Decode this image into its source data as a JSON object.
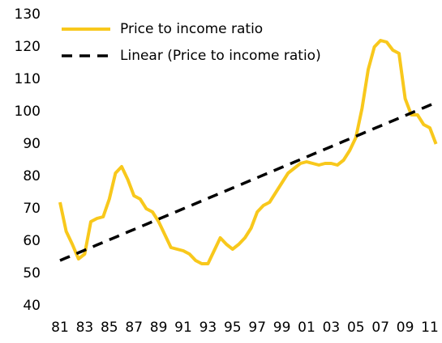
{
  "chart_data": {
    "type": "line",
    "categories": [
      "81",
      null,
      null,
      null,
      "83",
      null,
      null,
      null,
      "85",
      null,
      null,
      null,
      "87",
      null,
      null,
      null,
      "89",
      null,
      null,
      null,
      "91",
      null,
      null,
      null,
      "93",
      null,
      null,
      null,
      "95",
      null,
      null,
      null,
      "97",
      null,
      null,
      null,
      "99",
      null,
      null,
      null,
      "01",
      null,
      null,
      null,
      "03",
      null,
      null,
      null,
      "05",
      null,
      null,
      null,
      "07",
      null,
      null,
      null,
      "09",
      null,
      null,
      null,
      "11",
      null
    ],
    "series": [
      {
        "name": "Price to income ratio",
        "color": "#f8c81c",
        "dashed": false,
        "values": [
          72,
          63,
          59,
          54.5,
          56,
          66,
          67,
          67.5,
          73,
          81,
          83,
          79,
          74,
          73,
          70,
          69,
          66,
          62,
          58,
          57.5,
          57,
          56,
          54,
          53,
          53,
          57,
          61,
          59,
          57.5,
          59,
          61,
          64,
          69,
          71,
          72,
          75,
          78,
          81,
          82.5,
          84,
          84.5,
          84,
          83.5,
          84,
          84,
          83.5,
          85,
          88,
          92,
          101,
          113,
          120,
          122,
          121.5,
          119,
          118,
          104,
          99,
          99,
          96,
          95,
          90
        ]
      },
      {
        "name": "Linear (Price to income ratio)",
        "color": "#000000",
        "dashed": true,
        "values": [
          54,
          54.8,
          55.6,
          56.4,
          57.2,
          58,
          58.8,
          59.6,
          60.4,
          61.2,
          62,
          62.8,
          63.6,
          64.4,
          65.2,
          66,
          66.8,
          67.6,
          68.4,
          69.2,
          70,
          70.8,
          71.6,
          72.4,
          73.2,
          74,
          74.8,
          75.6,
          76.4,
          77.2,
          78,
          78.8,
          79.6,
          80.4,
          81.2,
          82,
          82.8,
          83.6,
          84.4,
          85.2,
          86,
          86.8,
          87.6,
          88.4,
          89.2,
          90,
          90.8,
          91.6,
          92.4,
          93.2,
          94,
          94.8,
          95.6,
          96.4,
          97.2,
          98,
          98.8,
          99.6,
          100.4,
          101.2,
          102,
          102.8
        ]
      }
    ],
    "ylim": [
      40,
      130
    ],
    "yticks": [
      40,
      50,
      60,
      70,
      80,
      90,
      100,
      110,
      120,
      130
    ],
    "grid": false,
    "legend": "upper left"
  }
}
